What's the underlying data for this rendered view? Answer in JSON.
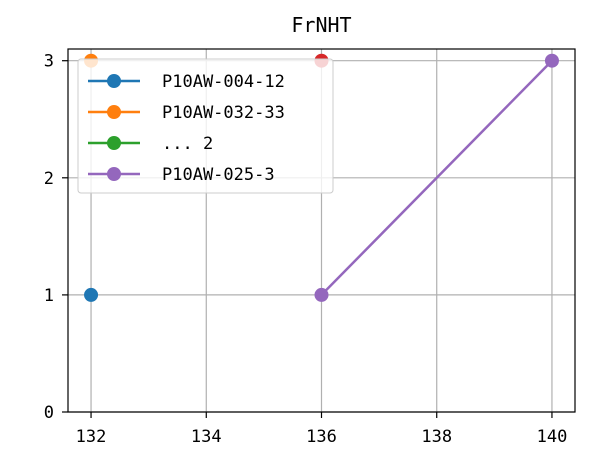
{
  "chart_data": {
    "type": "line",
    "title": "FrNHT",
    "xlabel": "",
    "ylabel": "",
    "xlim": [
      131.6,
      140.4
    ],
    "ylim": [
      0,
      3.1
    ],
    "xticks": [
      132,
      134,
      136,
      138,
      140
    ],
    "yticks": [
      0,
      1,
      2,
      3
    ],
    "grid": true,
    "legend_position": "upper-left",
    "series": [
      {
        "name": "P10AW-004-12",
        "color": "#1f77b4",
        "x": [
          132
        ],
        "y": [
          1
        ]
      },
      {
        "name": "P10AW-032-33",
        "color": "#ff7f0e",
        "x": [
          132
        ],
        "y": [
          3
        ]
      },
      {
        "name": "... 2",
        "color": "#2ca02c",
        "x": [],
        "y": []
      },
      {
        "name": "",
        "color": "#d62728",
        "x": [
          136
        ],
        "y": [
          3
        ],
        "in_legend": false
      },
      {
        "name": "P10AW-025-3",
        "color": "#9467bd",
        "x": [
          136,
          140
        ],
        "y": [
          1,
          3
        ]
      }
    ]
  }
}
